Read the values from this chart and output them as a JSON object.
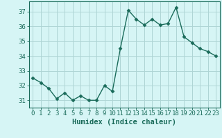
{
  "x": [
    0,
    1,
    2,
    3,
    4,
    5,
    6,
    7,
    8,
    9,
    10,
    11,
    12,
    13,
    14,
    15,
    16,
    17,
    18,
    19,
    20,
    21,
    22,
    23
  ],
  "y": [
    32.5,
    32.2,
    31.8,
    31.1,
    31.5,
    31.0,
    31.3,
    31.0,
    31.0,
    32.0,
    31.6,
    34.5,
    37.1,
    36.5,
    36.1,
    36.5,
    36.1,
    36.2,
    37.3,
    35.3,
    34.9,
    34.5,
    34.3,
    34.0
  ],
  "line_color": "#1a6b5a",
  "marker": "D",
  "marker_size": 2.5,
  "bg_color": "#d6f5f5",
  "grid_color": "#aed4d4",
  "xlabel": "Humidex (Indice chaleur)",
  "ylabel": "",
  "xlim": [
    -0.5,
    23.5
  ],
  "ylim": [
    30.5,
    37.7
  ],
  "yticks": [
    31,
    32,
    33,
    34,
    35,
    36,
    37
  ],
  "xticks": [
    0,
    1,
    2,
    3,
    4,
    5,
    6,
    7,
    8,
    9,
    10,
    11,
    12,
    13,
    14,
    15,
    16,
    17,
    18,
    19,
    20,
    21,
    22,
    23
  ],
  "tick_fontsize": 6.5,
  "xlabel_fontsize": 7.5,
  "axis_color": "#1a6b5a",
  "linewidth": 1.0,
  "spine_linewidth": 0.8
}
